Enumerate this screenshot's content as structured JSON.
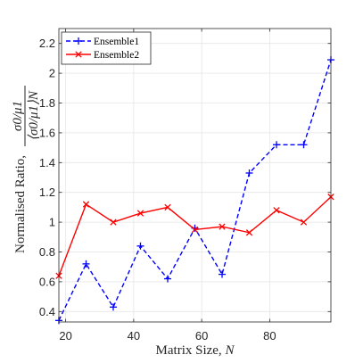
{
  "chart_data": {
    "type": "line",
    "xlabel": "Matrix Size, N",
    "ylabel": "Normalised Ratio, σ0/μ1 / ⟨σ0/μ1⟩N",
    "ylabel_prefix": "Normalised Ratio,",
    "ylabel_fraction": {
      "numerator": "σ0/μ1",
      "denominator": "⟨σ0/μ1⟩N"
    },
    "xlim": [
      18,
      98
    ],
    "ylim": [
      0.33,
      2.3
    ],
    "xticks": [
      20,
      40,
      60,
      80
    ],
    "yticks": [
      0.4,
      0.6,
      0.8,
      1.0,
      1.2,
      1.4,
      1.6,
      1.8,
      2.0,
      2.2
    ],
    "xtick_labels": [
      "20",
      "40",
      "60",
      "80"
    ],
    "ytick_labels": [
      "0.4",
      "0.6",
      "0.8",
      "1",
      "1.2",
      "1.4",
      "1.6",
      "1.8",
      "2",
      "2.2"
    ],
    "grid": true,
    "legend_position": "top-left",
    "x": [
      18,
      26,
      34,
      42,
      50,
      58,
      66,
      74,
      82,
      90,
      98
    ],
    "series": [
      {
        "name": "Ensemble1",
        "color": "#0000ff",
        "linestyle": "dashed",
        "marker": "plus",
        "values": [
          0.34,
          0.72,
          0.43,
          0.84,
          0.62,
          0.96,
          0.65,
          1.33,
          1.52,
          1.52,
          2.09
        ]
      },
      {
        "name": "Ensemble2",
        "color": "#ff0000",
        "linestyle": "solid",
        "marker": "x",
        "values": [
          0.64,
          1.12,
          1.0,
          1.06,
          1.1,
          0.95,
          0.97,
          0.93,
          1.08,
          1.0,
          1.17
        ]
      }
    ]
  }
}
